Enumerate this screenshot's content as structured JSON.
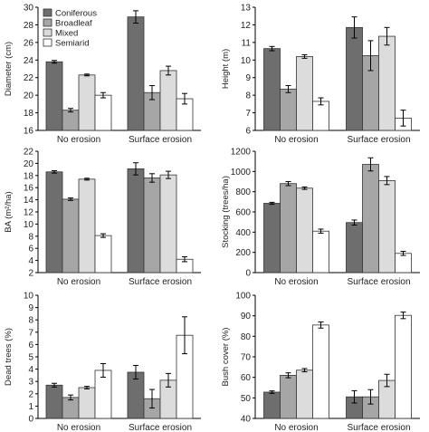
{
  "legend": [
    {
      "label": "Coniferous",
      "color": "#6e6e6e"
    },
    {
      "label": "Broadleaf",
      "color": "#a6a6a6"
    },
    {
      "label": "Mixed",
      "color": "#dcdcdc"
    },
    {
      "label": "Semiarid",
      "color": "#ffffff"
    }
  ],
  "chart_data": [
    {
      "type": "bar",
      "categories": [
        "No erosion",
        "Surface erosion"
      ],
      "ylabel": "Diameter (cm)",
      "ylim": [
        16,
        30
      ],
      "yticks": [
        16,
        18,
        20,
        22,
        24,
        26,
        28,
        30
      ],
      "series": [
        {
          "name": "Coniferous",
          "values": [
            23.8,
            28.9
          ],
          "errors": [
            0.15,
            0.7
          ]
        },
        {
          "name": "Broadleaf",
          "values": [
            18.3,
            20.3
          ],
          "errors": [
            0.2,
            0.8
          ]
        },
        {
          "name": "Mixed",
          "values": [
            22.3,
            22.8
          ],
          "errors": [
            0.1,
            0.5
          ]
        },
        {
          "name": "Semiarid",
          "values": [
            20.0,
            19.6
          ],
          "errors": [
            0.3,
            0.6
          ]
        }
      ]
    },
    {
      "type": "bar",
      "categories": [
        "No erosion",
        "Surface erosion"
      ],
      "ylabel": "Height (m)",
      "ylim": [
        6,
        13
      ],
      "yticks": [
        6,
        7,
        8,
        9,
        10,
        11,
        12,
        13
      ],
      "series": [
        {
          "name": "Coniferous",
          "values": [
            10.65,
            11.85
          ],
          "errors": [
            0.12,
            0.6
          ]
        },
        {
          "name": "Broadleaf",
          "values": [
            8.35,
            10.25
          ],
          "errors": [
            0.2,
            0.85
          ]
        },
        {
          "name": "Mixed",
          "values": [
            10.2,
            11.35
          ],
          "errors": [
            0.1,
            0.5
          ]
        },
        {
          "name": "Semiarid",
          "values": [
            7.65,
            6.7
          ],
          "errors": [
            0.2,
            0.45
          ]
        }
      ]
    },
    {
      "type": "bar",
      "categories": [
        "No erosion",
        "Surface erosion"
      ],
      "ylabel": "BA (m²/ha)",
      "ylim": [
        2,
        22
      ],
      "yticks": [
        2,
        4,
        6,
        8,
        10,
        12,
        14,
        16,
        18,
        20,
        22
      ],
      "series": [
        {
          "name": "Coniferous",
          "values": [
            18.6,
            19.1
          ],
          "errors": [
            0.2,
            1.0
          ]
        },
        {
          "name": "Broadleaf",
          "values": [
            14.1,
            17.6
          ],
          "errors": [
            0.2,
            0.7
          ]
        },
        {
          "name": "Mixed",
          "values": [
            17.4,
            18.1
          ],
          "errors": [
            0.15,
            0.6
          ]
        },
        {
          "name": "Semiarid",
          "values": [
            8.1,
            4.2
          ],
          "errors": [
            0.3,
            0.4
          ]
        }
      ]
    },
    {
      "type": "bar",
      "categories": [
        "No erosion",
        "Surface erosion"
      ],
      "ylabel": "Stocking (trees/ha)",
      "ylim": [
        0,
        1200
      ],
      "yticks": [
        0,
        200,
        400,
        600,
        800,
        1000,
        1200
      ],
      "series": [
        {
          "name": "Coniferous",
          "values": [
            685,
            495
          ],
          "errors": [
            10,
            25
          ]
        },
        {
          "name": "Broadleaf",
          "values": [
            880,
            1070
          ],
          "errors": [
            20,
            65
          ]
        },
        {
          "name": "Mixed",
          "values": [
            835,
            910
          ],
          "errors": [
            12,
            40
          ]
        },
        {
          "name": "Semiarid",
          "values": [
            410,
            190
          ],
          "errors": [
            20,
            20
          ]
        }
      ]
    },
    {
      "type": "bar",
      "categories": [
        "No erosion",
        "Surface erosion"
      ],
      "ylabel": "Dead trees (%)",
      "ylim": [
        0,
        10
      ],
      "yticks": [
        0,
        1,
        2,
        3,
        4,
        5,
        6,
        7,
        8,
        9,
        10
      ],
      "series": [
        {
          "name": "Coniferous",
          "values": [
            2.7,
            3.75
          ],
          "errors": [
            0.15,
            0.55
          ]
        },
        {
          "name": "Broadleaf",
          "values": [
            1.7,
            1.6
          ],
          "errors": [
            0.2,
            0.75
          ]
        },
        {
          "name": "Mixed",
          "values": [
            2.5,
            3.1
          ],
          "errors": [
            0.1,
            0.55
          ]
        },
        {
          "name": "Semiarid",
          "values": [
            3.9,
            6.75
          ],
          "errors": [
            0.55,
            1.5
          ]
        }
      ]
    },
    {
      "type": "bar",
      "categories": [
        "No erosion",
        "Surface erosion"
      ],
      "ylabel": "Bush cover (%)",
      "ylim": [
        40,
        100
      ],
      "yticks": [
        40,
        50,
        60,
        70,
        80,
        90,
        100
      ],
      "series": [
        {
          "name": "Coniferous",
          "values": [
            52.8,
            50.5
          ],
          "errors": [
            0.6,
            3.0
          ]
        },
        {
          "name": "Broadleaf",
          "values": [
            61.0,
            50.5
          ],
          "errors": [
            1.2,
            3.5
          ]
        },
        {
          "name": "Mixed",
          "values": [
            63.5,
            58.5
          ],
          "errors": [
            0.8,
            3.0
          ]
        },
        {
          "name": "Semiarid",
          "values": [
            85.5,
            90.2
          ],
          "errors": [
            1.5,
            1.6
          ]
        }
      ]
    }
  ]
}
